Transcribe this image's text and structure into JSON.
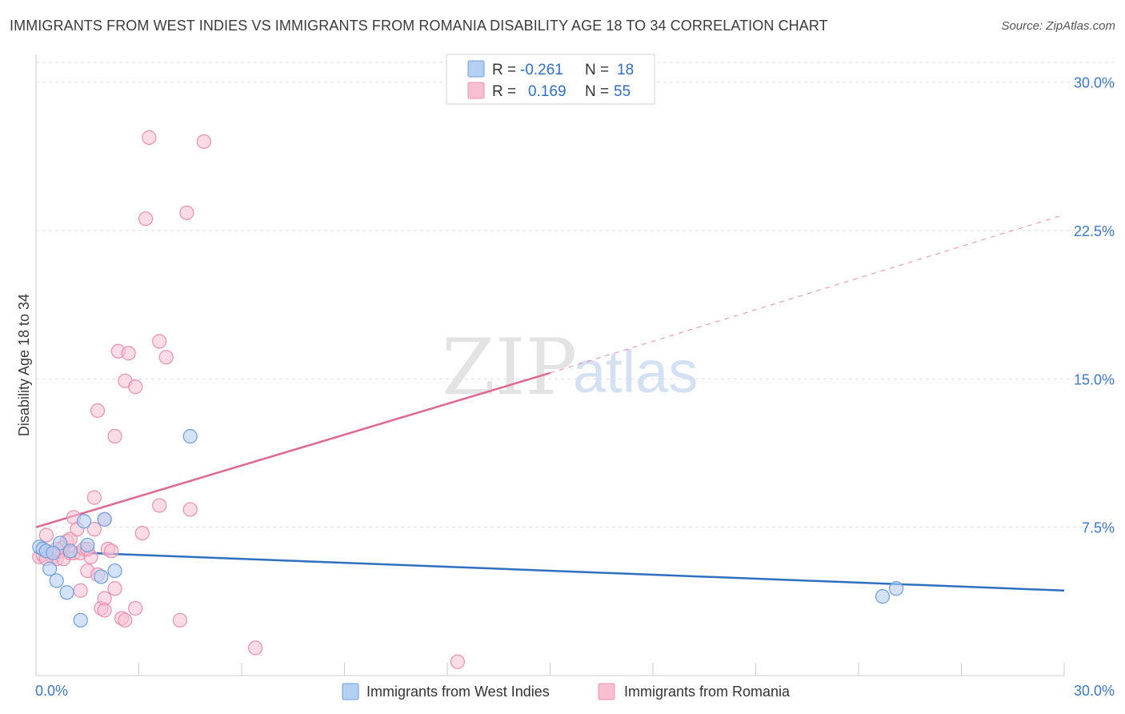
{
  "title": "IMMIGRANTS FROM WEST INDIES VS IMMIGRANTS FROM ROMANIA DISABILITY AGE 18 TO 34 CORRELATION CHART",
  "source": "Source: ZipAtlas.com",
  "watermark": {
    "zip": "ZIP",
    "atlas": "atlas"
  },
  "legend_top": {
    "rows": [
      {
        "r_label": "R =",
        "r_value": "-0.261",
        "n_label": "N =",
        "n_value": "18"
      },
      {
        "r_label": "R =",
        "r_value": "0.169",
        "n_label": "N =",
        "n_value": "55"
      }
    ]
  },
  "legend_bottom": {
    "items": [
      "Immigrants from West Indies",
      "Immigrants from Romania"
    ]
  },
  "colors": {
    "blue_fill": "#b5cff2",
    "blue_stroke": "#6a9fe0",
    "blue_line": "#2f6fc2",
    "pink_fill": "#f7c0d1",
    "pink_stroke": "#ec8fae",
    "pink_line": "#e0688f",
    "grid": "#dddddd",
    "tick_label": "#3b78c8"
  },
  "chart_data": {
    "type": "scatter",
    "title": "IMMIGRANTS FROM WEST INDIES VS IMMIGRANTS FROM ROMANIA DISABILITY AGE 18 TO 34 CORRELATION CHART",
    "xlabel": "",
    "ylabel": "Disability Age 18 to 34",
    "xlim": [
      0,
      30
    ],
    "ylim": [
      0,
      31
    ],
    "x_tick_labels": [
      "0.0%",
      "30.0%"
    ],
    "y_ticks": [
      7.5,
      15.0,
      22.5,
      30.0
    ],
    "y_tick_labels": [
      "7.5%",
      "15.0%",
      "22.5%",
      "30.0%"
    ],
    "series": [
      {
        "name": "Immigrants from West Indies",
        "r": -0.261,
        "n": 18,
        "points": [
          [
            0.1,
            6.5
          ],
          [
            0.2,
            6.4
          ],
          [
            0.3,
            6.3
          ],
          [
            0.4,
            5.4
          ],
          [
            0.6,
            4.8
          ],
          [
            0.7,
            6.7
          ],
          [
            0.9,
            4.2
          ],
          [
            1.0,
            6.3
          ],
          [
            1.3,
            2.8
          ],
          [
            1.4,
            7.8
          ],
          [
            1.5,
            6.6
          ],
          [
            1.9,
            5.0
          ],
          [
            2.0,
            7.9
          ],
          [
            2.3,
            5.3
          ],
          [
            4.5,
            12.1
          ],
          [
            24.7,
            4.0
          ],
          [
            25.1,
            4.4
          ],
          [
            0.5,
            6.2
          ]
        ],
        "trend": {
          "x": [
            0,
            30
          ],
          "y": [
            6.3,
            4.3
          ]
        }
      },
      {
        "name": "Immigrants from Romania",
        "r": 0.169,
        "n": 55,
        "points": [
          [
            0.1,
            6.0
          ],
          [
            0.2,
            6.4
          ],
          [
            0.2,
            6.1
          ],
          [
            0.3,
            7.1
          ],
          [
            0.4,
            6.2
          ],
          [
            0.5,
            6.0
          ],
          [
            0.6,
            5.9
          ],
          [
            0.7,
            6.3
          ],
          [
            0.8,
            5.9
          ],
          [
            0.8,
            6.5
          ],
          [
            0.9,
            6.8
          ],
          [
            1.0,
            6.2
          ],
          [
            1.0,
            6.9
          ],
          [
            1.1,
            8.0
          ],
          [
            1.1,
            6.2
          ],
          [
            1.2,
            7.4
          ],
          [
            1.3,
            6.2
          ],
          [
            1.3,
            4.3
          ],
          [
            1.4,
            6.4
          ],
          [
            1.5,
            5.3
          ],
          [
            1.6,
            6.0
          ],
          [
            1.7,
            7.4
          ],
          [
            1.7,
            9.0
          ],
          [
            1.8,
            5.1
          ],
          [
            1.8,
            13.4
          ],
          [
            1.9,
            3.4
          ],
          [
            2.0,
            3.9
          ],
          [
            2.0,
            3.3
          ],
          [
            2.0,
            7.9
          ],
          [
            2.1,
            6.4
          ],
          [
            2.2,
            6.3
          ],
          [
            2.3,
            4.4
          ],
          [
            2.3,
            12.1
          ],
          [
            2.4,
            16.4
          ],
          [
            2.5,
            2.9
          ],
          [
            2.6,
            14.9
          ],
          [
            2.6,
            2.8
          ],
          [
            2.7,
            16.3
          ],
          [
            2.9,
            14.6
          ],
          [
            2.9,
            3.4
          ],
          [
            3.1,
            7.2
          ],
          [
            3.2,
            23.1
          ],
          [
            3.3,
            27.2
          ],
          [
            3.6,
            16.9
          ],
          [
            3.6,
            8.6
          ],
          [
            3.8,
            16.1
          ],
          [
            4.2,
            2.8
          ],
          [
            4.4,
            23.4
          ],
          [
            4.5,
            8.4
          ],
          [
            4.9,
            27.0
          ],
          [
            6.4,
            1.4
          ],
          [
            12.3,
            0.7
          ],
          [
            0.3,
            5.9
          ],
          [
            0.6,
            6.4
          ],
          [
            1.5,
            6.4
          ]
        ],
        "trend_solid": {
          "x": [
            0,
            15
          ],
          "y": [
            7.5,
            15.3
          ]
        },
        "trend_dashed": {
          "x": [
            15,
            30
          ],
          "y": [
            15.3,
            23.3
          ]
        }
      }
    ]
  }
}
